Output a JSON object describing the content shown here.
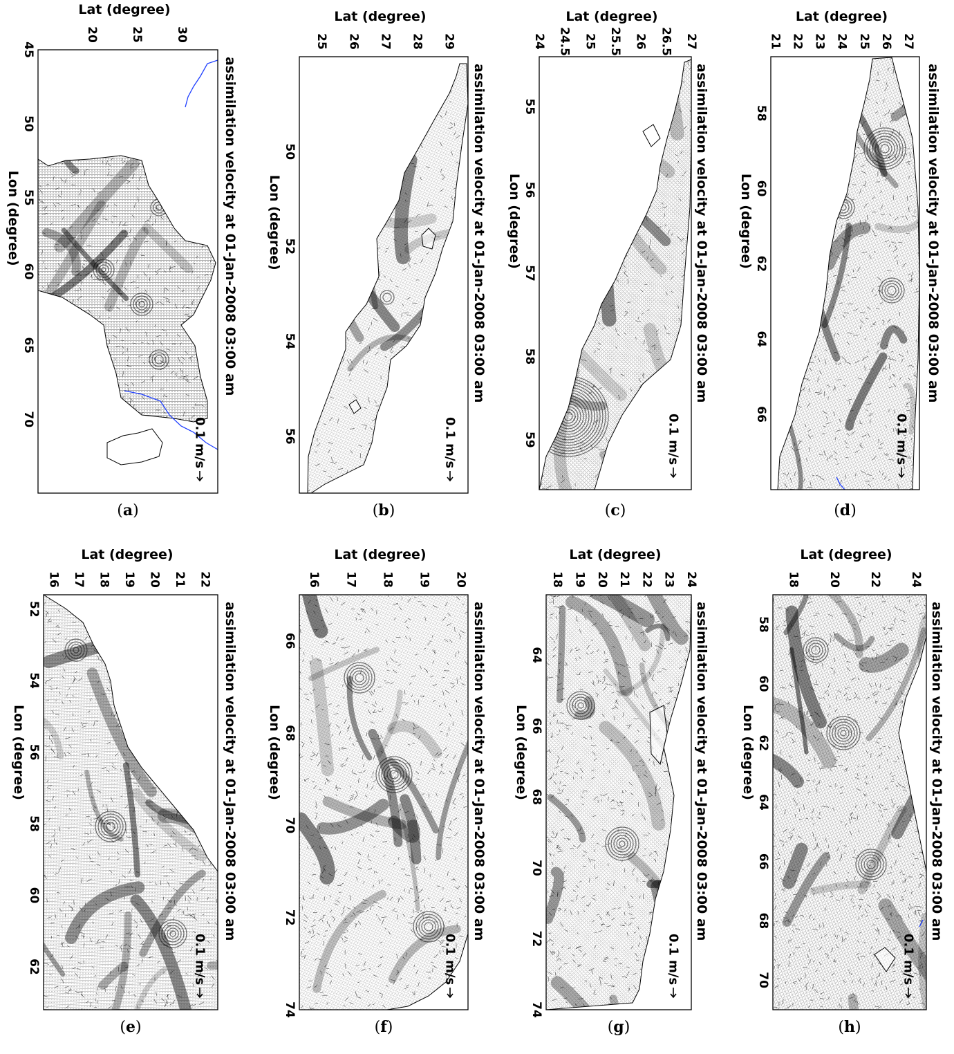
{
  "figure": {
    "panel_title": "assimilation velocity at 01-Jan-2008 03:00 am",
    "lat_label": "Lat (degree)",
    "lon_label": "Lon (degree)",
    "scale_label": "0.1 m/s"
  },
  "chart_data": [
    {
      "type": "vector_field",
      "id": "a",
      "caption_letter": "a",
      "title": "assimilation velocity at 01-Jan-2008 03:00 am",
      "xlabel": "Lat (degree)",
      "ylabel": "Lon (degree)",
      "scale": "0.1 m/s",
      "lat_range": [
        14,
        34
      ],
      "lon_range": [
        45,
        75
      ],
      "lat_ticks": [
        "20",
        "25",
        "30"
      ],
      "lat_tick_values": [
        20,
        25,
        30
      ],
      "lon_ticks": [
        "45",
        "50",
        "55",
        "60",
        "65",
        "70"
      ],
      "lon_tick_values": [
        45,
        50,
        55,
        60,
        65,
        70
      ],
      "border_color": "#1f3fff"
    },
    {
      "type": "vector_field",
      "id": "b",
      "caption_letter": "b",
      "title": "assimilation velocity at 01-Jan-2008 03:00 am",
      "xlabel": "Lat (degree)",
      "ylabel": "Lon (degree)",
      "scale": "0.1 m/s",
      "lat_range": [
        24.3,
        29.6
      ],
      "lon_range": [
        48,
        57.2
      ],
      "lat_ticks": [
        "25",
        "26",
        "27",
        "28",
        "29"
      ],
      "lat_tick_values": [
        25,
        26,
        27,
        28,
        29
      ],
      "lon_ticks": [
        "50",
        "52",
        "54",
        "56"
      ],
      "lon_tick_values": [
        50,
        52,
        54,
        56
      ]
    },
    {
      "type": "vector_field",
      "id": "c",
      "caption_letter": "c",
      "title": "assimilation velocity at 01-Jan-2008 03:00 am",
      "xlabel": "Lat (degree)",
      "ylabel": "Lon (degree)",
      "scale": "0.1 m/s",
      "lat_range": [
        24,
        27
      ],
      "lon_range": [
        54.4,
        59.6
      ],
      "lat_ticks": [
        "24",
        "24.5",
        "25",
        "25.5",
        "26",
        "26.5",
        "27"
      ],
      "lat_tick_values": [
        24,
        24.5,
        25,
        25.5,
        26,
        26.5,
        27
      ],
      "lon_ticks": [
        "55",
        "56",
        "57",
        "58",
        "59"
      ],
      "lon_tick_values": [
        55,
        56,
        57,
        58,
        59
      ]
    },
    {
      "type": "vector_field",
      "id": "d",
      "caption_letter": "d",
      "title": "assimilation velocity at 01-Jan-2008 03:00 am",
      "xlabel": "Lat (degree)",
      "ylabel": "Lon (degree)",
      "scale": "0.1 m/s",
      "lat_range": [
        20.8,
        27.5
      ],
      "lon_range": [
        56.5,
        68
      ],
      "lat_ticks": [
        "21",
        "22",
        "23",
        "24",
        "25",
        "26",
        "27"
      ],
      "lat_tick_values": [
        21,
        22,
        23,
        24,
        25,
        26,
        27
      ],
      "lon_ticks": [
        "58",
        "60",
        "62",
        "64",
        "66"
      ],
      "lon_tick_values": [
        58,
        60,
        62,
        64,
        66
      ],
      "border_color": "#1f3fff"
    },
    {
      "type": "vector_field",
      "id": "e",
      "caption_letter": "e",
      "title": "assimilation velocity at 01-Jan-2008 03:00 am",
      "xlabel": "Lat (degree)",
      "ylabel": "Lon (degree)",
      "scale": "0.1 m/s",
      "lat_range": [
        15.6,
        22.5
      ],
      "lon_range": [
        51.6,
        63.2
      ],
      "lat_ticks": [
        "16",
        "17",
        "18",
        "19",
        "20",
        "21",
        "22"
      ],
      "lat_tick_values": [
        16,
        17,
        18,
        19,
        20,
        21,
        22
      ],
      "lon_ticks": [
        "52",
        "54",
        "56",
        "58",
        "60",
        "62"
      ],
      "lon_tick_values": [
        52,
        54,
        56,
        58,
        60,
        62
      ]
    },
    {
      "type": "vector_field",
      "id": "f",
      "caption_letter": "f",
      "title": "assimilation velocity at 01-Jan-2008 03:00 am",
      "xlabel": "Lat (degree)",
      "ylabel": "Lon (degree)",
      "scale": "0.1 m/s",
      "lat_range": [
        15.6,
        20.2
      ],
      "lon_range": [
        65,
        74
      ],
      "lat_ticks": [
        "16",
        "17",
        "18",
        "19",
        "20"
      ],
      "lat_tick_values": [
        16,
        17,
        18,
        19,
        20
      ],
      "lon_ticks": [
        "66",
        "68",
        "70",
        "72",
        "74"
      ],
      "lon_tick_values": [
        66,
        68,
        70,
        72,
        74
      ]
    },
    {
      "type": "vector_field",
      "id": "g",
      "caption_letter": "g",
      "title": "assimilation velocity at 01-Jan-2008 03:00 am",
      "xlabel": "Lat (degree)",
      "ylabel": "Lon (degree)",
      "scale": "0.1 m/s",
      "lat_range": [
        17.5,
        24
      ],
      "lon_range": [
        62.3,
        74
      ],
      "lat_ticks": [
        "18",
        "19",
        "20",
        "21",
        "22",
        "23",
        "24"
      ],
      "lat_tick_values": [
        18,
        19,
        20,
        21,
        22,
        23,
        24
      ],
      "lon_ticks": [
        "64",
        "66",
        "68",
        "70",
        "72",
        "74"
      ],
      "lon_tick_values": [
        64,
        66,
        68,
        70,
        72,
        74
      ]
    },
    {
      "type": "vector_field",
      "id": "h",
      "caption_letter": "h",
      "title": "assimilation velocity at 01-Jan-2008 03:00 am",
      "xlabel": "Lat (degree)",
      "ylabel": "Lon (degree)",
      "scale": "0.1 m/s",
      "lat_range": [
        17,
        24.5
      ],
      "lon_range": [
        57,
        71
      ],
      "lat_ticks": [
        "18",
        "20",
        "22",
        "24"
      ],
      "lat_tick_values": [
        18,
        20,
        22,
        24
      ],
      "lon_ticks": [
        "58",
        "60",
        "62",
        "64",
        "66",
        "68",
        "70"
      ],
      "lon_tick_values": [
        58,
        60,
        62,
        64,
        66,
        68,
        70
      ],
      "border_color": "#1f3fff"
    }
  ]
}
